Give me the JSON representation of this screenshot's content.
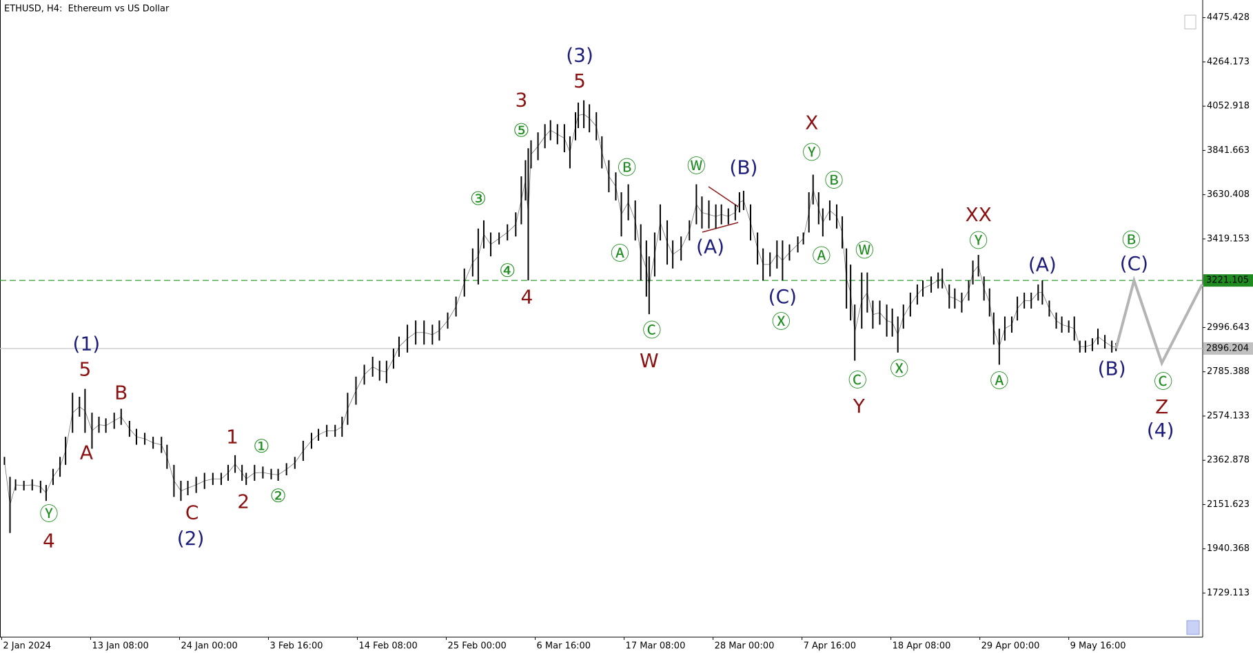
{
  "chart_data": {
    "type": "range",
    "title": "ETHUSD, H4:  Ethereum vs US Dollar",
    "color": "#000000",
    "xlim": [
      -1.2,
      864.4
    ],
    "ylim": [
      1518.7,
      4559.6
    ],
    "xticks": [
      {
        "value": 0,
        "label": "2 Jan 2024"
      },
      {
        "value": 64,
        "label": "13 Jan 08:00"
      },
      {
        "value": 128,
        "label": "24 Jan 00:00"
      },
      {
        "value": 192,
        "label": "3 Feb 16:00"
      },
      {
        "value": 256,
        "label": "14 Feb 08:00"
      },
      {
        "value": 320,
        "label": "25 Feb 00:00"
      },
      {
        "value": 384,
        "label": "6 Mar 16:00"
      },
      {
        "value": 448,
        "label": "17 Mar 08:00"
      },
      {
        "value": 512,
        "label": "28 Mar 00:00"
      },
      {
        "value": 576,
        "label": "7 Apr 16:00"
      },
      {
        "value": 640,
        "label": "18 Apr 08:00"
      },
      {
        "value": 704,
        "label": "29 Apr 00:00"
      },
      {
        "value": 768,
        "label": "9 May 16:00"
      }
    ],
    "yticks": [
      4475.428,
      4264.173,
      4052.918,
      3841.663,
      3630.408,
      3419.153,
      2996.643,
      2785.388,
      2574.133,
      2362.878,
      2151.623,
      1940.368,
      1729.113
    ],
    "x": [
      2,
      6,
      10,
      16,
      22,
      28,
      32,
      37,
      42,
      46,
      51,
      56,
      60,
      65,
      70,
      75,
      81,
      86,
      92,
      97,
      103,
      109,
      115,
      119,
      124,
      129,
      134,
      140,
      146,
      152,
      158,
      163,
      168,
      173,
      176,
      182,
      188,
      194,
      199,
      205,
      211,
      217,
      223,
      228,
      234,
      240,
      245,
      249,
      255,
      261,
      267,
      272,
      277,
      282,
      286,
      292,
      298,
      304,
      310,
      315,
      321,
      327,
      333,
      339,
      343,
      347,
      352,
      358,
      364,
      370,
      374,
      377,
      379,
      381,
      386,
      391,
      395,
      400,
      405,
      409,
      413,
      415,
      419,
      423,
      428,
      432,
      437,
      442,
      446,
      451,
      456,
      460,
      464,
      466,
      470,
      474,
      479,
      483,
      489,
      495,
      500,
      504,
      509,
      514,
      518,
      523,
      528,
      531,
      534,
      539,
      544,
      548,
      553,
      558,
      562,
      567,
      573,
      577,
      581,
      584,
      588,
      591,
      596,
      601,
      605,
      608,
      611,
      614,
      619,
      623,
      627,
      632,
      637,
      641,
      645,
      649,
      654,
      659,
      663,
      669,
      674,
      677,
      682,
      686,
      691,
      696,
      699,
      703,
      707,
      711,
      714,
      718,
      722,
      727,
      731,
      736,
      741,
      746,
      749,
      754,
      759,
      763,
      768,
      772,
      776,
      780,
      785,
      789,
      794,
      799,
      802
    ],
    "high": [
      2379,
      2284,
      2272,
      2265,
      2272,
      2265,
      2245,
      2322,
      2379,
      2475,
      2685,
      2666,
      2704,
      2590,
      2571,
      2563,
      2590,
      2609,
      2551,
      2513,
      2494,
      2475,
      2475,
      2437,
      2341,
      2265,
      2265,
      2284,
      2303,
      2303,
      2303,
      2341,
      2387,
      2341,
      2303,
      2341,
      2333,
      2322,
      2322,
      2349,
      2379,
      2456,
      2494,
      2513,
      2532,
      2532,
      2571,
      2685,
      2762,
      2819,
      2857,
      2838,
      2838,
      2896,
      2953,
      3010,
      3030,
      3030,
      3010,
      3030,
      3068,
      3144,
      3278,
      3374,
      3469,
      3508,
      3450,
      3450,
      3489,
      3546,
      3718,
      3795,
      3852,
      3890,
      3928,
      3967,
      3986,
      3967,
      3967,
      3909,
      4024,
      4070,
      4081,
      4062,
      4024,
      3909,
      3795,
      3737,
      3642,
      3680,
      3603,
      3489,
      3412,
      3336,
      3450,
      3584,
      3508,
      3412,
      3431,
      3508,
      3680,
      3622,
      3603,
      3584,
      3584,
      3565,
      3584,
      3642,
      3649,
      3584,
      3450,
      3374,
      3355,
      3412,
      3412,
      3393,
      3431,
      3450,
      3642,
      3726,
      3642,
      3565,
      3603,
      3584,
      3527,
      3374,
      3297,
      3106,
      3259,
      3259,
      3125,
      3125,
      3106,
      3087,
      3049,
      3106,
      3163,
      3202,
      3221,
      3240,
      3259,
      3278,
      3202,
      3183,
      3163,
      3221,
      3316,
      3343,
      3240,
      3183,
      3068,
      2991,
      3049,
      3049,
      3144,
      3163,
      3163,
      3202,
      3221,
      3125,
      3068,
      3049,
      3030,
      3049,
      2934,
      2934,
      2945,
      2991,
      2961,
      2934,
      2922
    ],
    "low": [
      2341,
      2016,
      2219,
      2219,
      2219,
      2207,
      2169,
      2245,
      2284,
      2341,
      2494,
      2571,
      2494,
      2418,
      2494,
      2494,
      2513,
      2532,
      2475,
      2437,
      2437,
      2418,
      2398,
      2322,
      2188,
      2169,
      2196,
      2207,
      2226,
      2245,
      2245,
      2265,
      2303,
      2265,
      2245,
      2265,
      2276,
      2272,
      2265,
      2291,
      2322,
      2360,
      2418,
      2456,
      2475,
      2475,
      2475,
      2532,
      2628,
      2724,
      2762,
      2743,
      2731,
      2800,
      2857,
      2877,
      2915,
      2915,
      2915,
      2934,
      2991,
      3049,
      3144,
      3240,
      3202,
      3374,
      3336,
      3393,
      3412,
      3431,
      3489,
      3603,
      3221,
      3756,
      3795,
      3852,
      3890,
      3871,
      3833,
      3756,
      3890,
      3948,
      3948,
      3928,
      3890,
      3756,
      3642,
      3603,
      3431,
      3508,
      3412,
      3221,
      3144,
      3060,
      3240,
      3412,
      3297,
      3278,
      3316,
      3412,
      3489,
      3469,
      3469,
      3469,
      3489,
      3489,
      3508,
      3546,
      3557,
      3412,
      3297,
      3221,
      3240,
      3278,
      3221,
      3316,
      3355,
      3393,
      3450,
      3584,
      3489,
      3431,
      3508,
      3469,
      3374,
      3087,
      3030,
      2838,
      2991,
      3068,
      2991,
      3010,
      2953,
      2953,
      2877,
      2991,
      3049,
      3106,
      3144,
      3163,
      3183,
      3183,
      3087,
      3087,
      3068,
      3125,
      3202,
      3240,
      3125,
      3049,
      2915,
      2819,
      2934,
      2972,
      3030,
      3087,
      3087,
      3125,
      3106,
      3049,
      2991,
      2972,
      2972,
      2934,
      2877,
      2877,
      2884,
      2915,
      2896,
      2877,
      2884
    ],
    "projection": {
      "x": [
        802,
        815,
        835,
        864
      ],
      "values": [
        2896,
        3221,
        2827,
        3202
      ],
      "color": "#b4b4b4"
    },
    "hlines": [
      {
        "value": 3221.105,
        "color": "#2e9e2e",
        "dashed": true,
        "label_fill": "#1f8a1f"
      },
      {
        "value": 2896.204,
        "color": "#c8c8c8",
        "dashed": false,
        "label_fill": "#c0c0c0"
      }
    ],
    "annotations": [
      {
        "text": "(3)",
        "x": 416,
        "y": 4292,
        "color": "#1c1c7a"
      },
      {
        "text": "5",
        "x": 416,
        "y": 4169,
        "color": "#8b1010"
      },
      {
        "text": "3",
        "x": 374,
        "y": 4078,
        "color": "#8b1010"
      },
      {
        "text": "⑤",
        "x": 374,
        "y": 3932,
        "color": "#1e8c1e"
      },
      {
        "text": "③",
        "x": 343,
        "y": 3607,
        "color": "#1e8c1e"
      },
      {
        "text": "④",
        "x": 364,
        "y": 3263,
        "color": "#1e8c1e"
      },
      {
        "text": "4",
        "x": 378,
        "y": 3137,
        "color": "#8b1010"
      },
      {
        "text": "Ⓑ",
        "x": 450,
        "y": 3752,
        "color": "#1e8c1e"
      },
      {
        "text": "Ⓐ",
        "x": 445,
        "y": 3343,
        "color": "#1e8c1e"
      },
      {
        "text": "Ⓒ",
        "x": 468,
        "y": 2976,
        "color": "#1e8c1e"
      },
      {
        "text": "W",
        "x": 466,
        "y": 2834,
        "color": "#8b1010"
      },
      {
        "text": "Ⓦ",
        "x": 500,
        "y": 3760,
        "color": "#1e8c1e"
      },
      {
        "text": "(B)",
        "x": 534,
        "y": 3756,
        "color": "#1c1c7a"
      },
      {
        "text": "(A)",
        "x": 510,
        "y": 3378,
        "color": "#1c1c7a"
      },
      {
        "text": "(C)",
        "x": 562,
        "y": 3140,
        "color": "#1c1c7a"
      },
      {
        "text": "Ⓧ",
        "x": 561,
        "y": 3018,
        "color": "#1e8c1e"
      },
      {
        "text": "X",
        "x": 583,
        "y": 3970,
        "color": "#8b1010"
      },
      {
        "text": "Ⓨ",
        "x": 583,
        "y": 3825,
        "color": "#1e8c1e"
      },
      {
        "text": "Ⓑ",
        "x": 599,
        "y": 3691,
        "color": "#1e8c1e"
      },
      {
        "text": "Ⓐ",
        "x": 590,
        "y": 3332,
        "color": "#1e8c1e"
      },
      {
        "text": "Ⓦ",
        "x": 621,
        "y": 3358,
        "color": "#1e8c1e"
      },
      {
        "text": "Ⓒ",
        "x": 616,
        "y": 2739,
        "color": "#1e8c1e"
      },
      {
        "text": "Y",
        "x": 617,
        "y": 2616,
        "color": "#8b1010"
      },
      {
        "text": "Ⓧ",
        "x": 646,
        "y": 2792,
        "color": "#1e8c1e"
      },
      {
        "text": "XX",
        "x": 703,
        "y": 3531,
        "color": "#8b1010"
      },
      {
        "text": "Ⓨ",
        "x": 703,
        "y": 3404,
        "color": "#1e8c1e"
      },
      {
        "text": "(A)",
        "x": 749,
        "y": 3293,
        "color": "#1c1c7a"
      },
      {
        "text": "Ⓐ",
        "x": 718,
        "y": 2735,
        "color": "#1e8c1e"
      },
      {
        "text": "Ⓑ",
        "x": 813,
        "y": 3408,
        "color": "#1e8c1e"
      },
      {
        "text": "(C)",
        "x": 815,
        "y": 3297,
        "color": "#1c1c7a"
      },
      {
        "text": "(B)",
        "x": 799,
        "y": 2796,
        "color": "#1c1c7a"
      },
      {
        "text": "Ⓒ",
        "x": 836,
        "y": 2731,
        "color": "#1e8c1e"
      },
      {
        "text": "Z",
        "x": 835,
        "y": 2613,
        "color": "#8b1010"
      },
      {
        "text": "(4)",
        "x": 834,
        "y": 2502,
        "color": "#1c1c7a"
      },
      {
        "text": "(1)",
        "x": 61,
        "y": 2915,
        "color": "#1c1c7a"
      },
      {
        "text": "5",
        "x": 60,
        "y": 2792,
        "color": "#8b1010"
      },
      {
        "text": "B",
        "x": 86,
        "y": 2681,
        "color": "#8b1010"
      },
      {
        "text": "A",
        "x": 61,
        "y": 2395,
        "color": "#8b1010"
      },
      {
        "text": "Ⓨ",
        "x": 34,
        "y": 2100,
        "color": "#1e8c1e"
      },
      {
        "text": "4",
        "x": 34,
        "y": 1974,
        "color": "#8b1010"
      },
      {
        "text": "C",
        "x": 137,
        "y": 2108,
        "color": "#8b1010"
      },
      {
        "text": "(2)",
        "x": 136,
        "y": 1985,
        "color": "#1c1c7a"
      },
      {
        "text": "1",
        "x": 166,
        "y": 2471,
        "color": "#8b1010"
      },
      {
        "text": "①",
        "x": 187,
        "y": 2425,
        "color": "#1e8c1e"
      },
      {
        "text": "2",
        "x": 174,
        "y": 2161,
        "color": "#8b1010"
      },
      {
        "text": "②",
        "x": 199,
        "y": 2188,
        "color": "#1e8c1e"
      }
    ]
  }
}
